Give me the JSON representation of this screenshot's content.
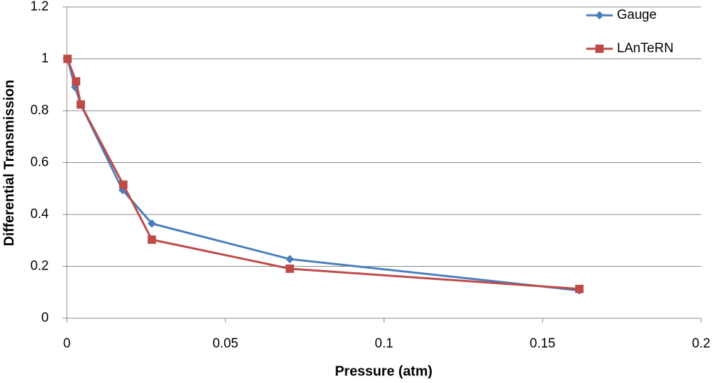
{
  "chart_data": {
    "type": "scatter-line",
    "x_label": "Pressure (atm)",
    "y_label": "Differential Transmission",
    "xlim": [
      0,
      0.2
    ],
    "xticks": [
      0,
      0.05,
      0.1,
      0.15,
      0.2
    ],
    "ylim": [
      0,
      1.2
    ],
    "yticks": [
      0,
      0.2,
      0.4,
      0.6,
      0.8,
      1,
      1.2
    ],
    "grid": true,
    "legend": "upper right",
    "series": [
      {
        "name": "Gauge",
        "color": "#4a7ebb",
        "marker": "diamond",
        "x": [
          0.0002,
          0.0026,
          0.0044,
          0.0176,
          0.0268,
          0.0703,
          0.1616
        ],
        "values": [
          1.0,
          0.891,
          0.824,
          0.494,
          0.365,
          0.228,
          0.107
        ]
      },
      {
        "name": "LAnTeRN",
        "color": "#be4b48",
        "marker": "square",
        "x": [
          0.0002,
          0.0029,
          0.0044,
          0.0178,
          0.0268,
          0.0703,
          0.1616
        ],
        "values": [
          1.0,
          0.913,
          0.824,
          0.515,
          0.303,
          0.191,
          0.113
        ]
      }
    ]
  }
}
